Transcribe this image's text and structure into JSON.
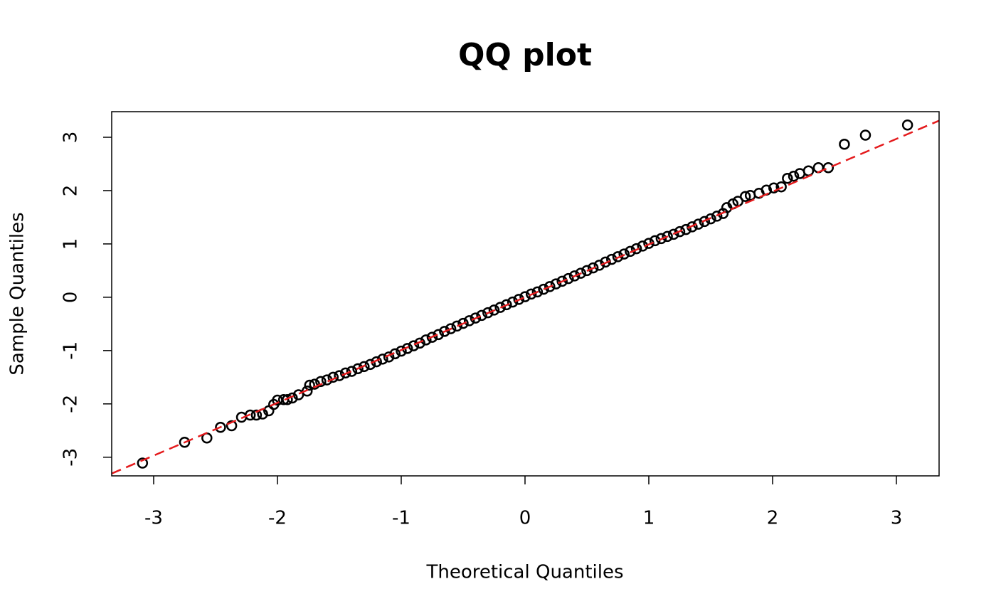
{
  "chart_data": {
    "type": "scatter",
    "title": "QQ plot",
    "x_label": "Theoretical Quantiles",
    "y_label": "Sample Quantiles",
    "x": [
      -3.09,
      -2.75,
      -2.57,
      -2.46,
      -2.37,
      -2.29,
      -2.22,
      -2.17,
      -2.12,
      -2.07,
      -2.03,
      -2.0,
      -1.95,
      -1.92,
      -1.88,
      -1.83,
      -1.76,
      -1.74,
      -1.7,
      -1.65,
      -1.6,
      -1.55,
      -1.5,
      -1.45,
      -1.4,
      -1.35,
      -1.3,
      -1.25,
      -1.2,
      -1.15,
      -1.1,
      -1.05,
      -1.0,
      -0.95,
      -0.9,
      -0.85,
      -0.8,
      -0.75,
      -0.7,
      -0.65,
      -0.6,
      -0.55,
      -0.5,
      -0.45,
      -0.4,
      -0.35,
      -0.3,
      -0.25,
      -0.2,
      -0.15,
      -0.1,
      -0.05,
      0.0,
      0.05,
      0.1,
      0.15,
      0.2,
      0.25,
      0.3,
      0.35,
      0.4,
      0.45,
      0.5,
      0.55,
      0.6,
      0.65,
      0.7,
      0.75,
      0.8,
      0.85,
      0.9,
      0.95,
      1.0,
      1.05,
      1.1,
      1.15,
      1.2,
      1.25,
      1.3,
      1.35,
      1.4,
      1.45,
      1.5,
      1.55,
      1.6,
      1.63,
      1.68,
      1.72,
      1.78,
      1.82,
      1.89,
      1.95,
      2.01,
      2.07,
      2.12,
      2.17,
      2.22,
      2.29,
      2.37,
      2.45,
      2.58,
      2.75,
      3.09
    ],
    "values": [
      -3.11,
      -2.72,
      -2.64,
      -2.44,
      -2.41,
      -2.25,
      -2.21,
      -2.21,
      -2.19,
      -2.13,
      -2.01,
      -1.93,
      -1.92,
      -1.92,
      -1.89,
      -1.83,
      -1.76,
      -1.65,
      -1.63,
      -1.58,
      -1.55,
      -1.5,
      -1.47,
      -1.42,
      -1.39,
      -1.34,
      -1.3,
      -1.26,
      -1.21,
      -1.16,
      -1.12,
      -1.06,
      -1.01,
      -0.96,
      -0.91,
      -0.86,
      -0.8,
      -0.75,
      -0.7,
      -0.64,
      -0.59,
      -0.54,
      -0.49,
      -0.44,
      -0.39,
      -0.34,
      -0.29,
      -0.24,
      -0.19,
      -0.14,
      -0.09,
      -0.04,
      0.01,
      0.06,
      0.1,
      0.15,
      0.2,
      0.25,
      0.3,
      0.35,
      0.4,
      0.45,
      0.5,
      0.55,
      0.6,
      0.66,
      0.71,
      0.76,
      0.81,
      0.86,
      0.91,
      0.96,
      1.01,
      1.06,
      1.1,
      1.14,
      1.18,
      1.23,
      1.27,
      1.32,
      1.37,
      1.42,
      1.47,
      1.52,
      1.57,
      1.68,
      1.75,
      1.8,
      1.89,
      1.91,
      1.95,
      2.01,
      2.05,
      2.07,
      2.23,
      2.27,
      2.32,
      2.37,
      2.43,
      2.43,
      2.87,
      3.04,
      3.23
    ],
    "color": "#000000",
    "reference_line": {
      "intercept": 0,
      "slope": 0.99,
      "color": "#e41a1c",
      "dashed": true
    },
    "xlim": [
      -3.339,
      3.345
    ],
    "ylim": [
      -3.35,
      3.48
    ],
    "xticks": [
      -3,
      -2,
      -1,
      0,
      1,
      2,
      3
    ],
    "yticks": [
      -3,
      -2,
      -1,
      0,
      1,
      2,
      3
    ]
  }
}
